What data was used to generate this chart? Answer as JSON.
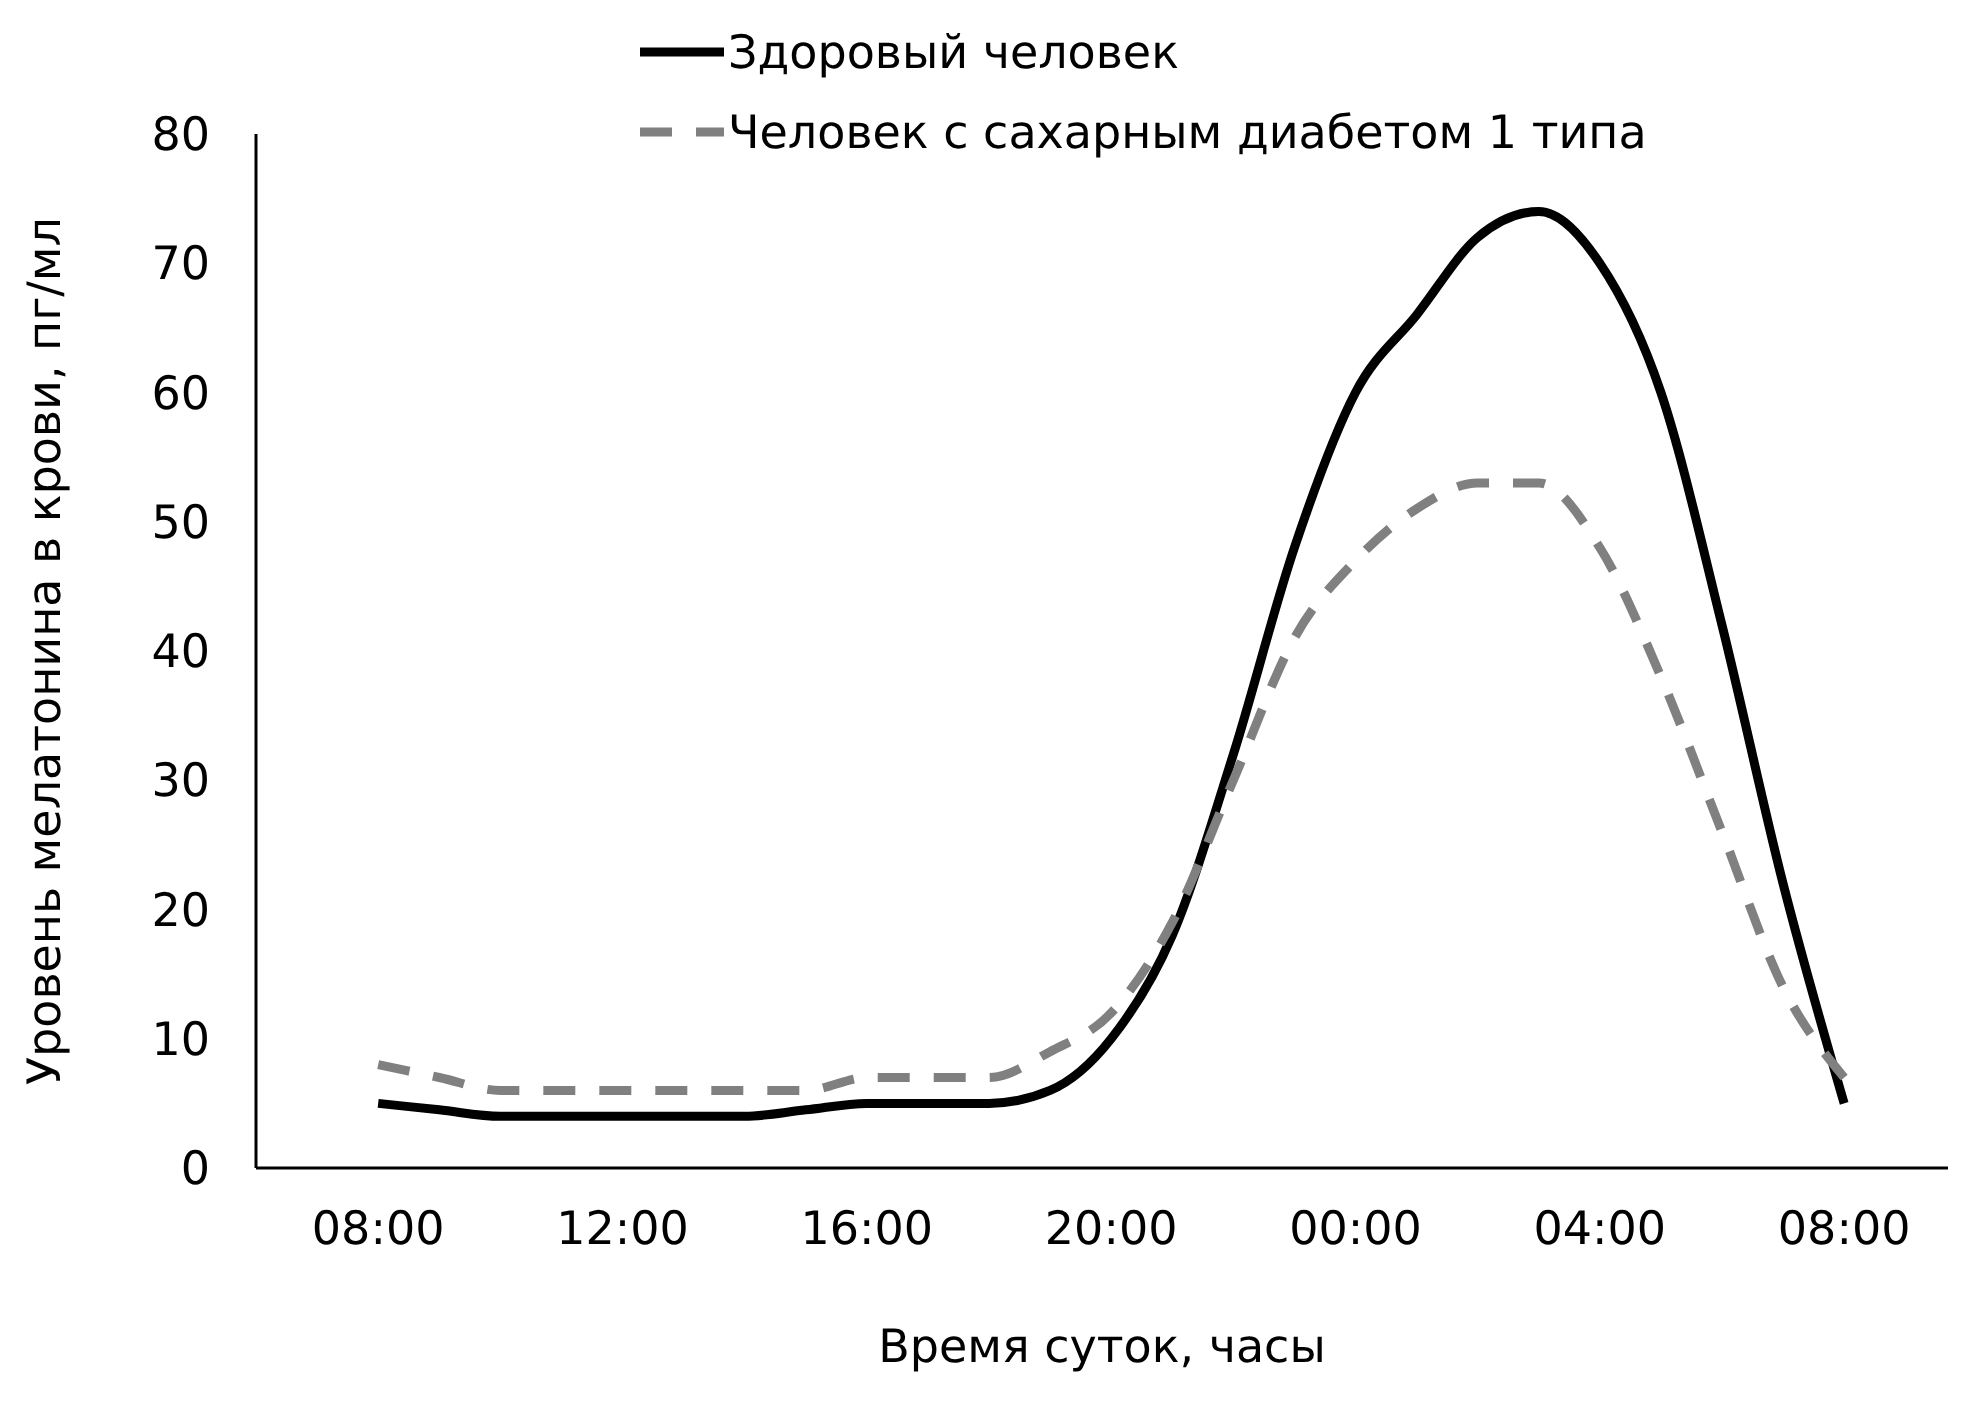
{
  "chart_data": {
    "type": "line",
    "xlabel": "Время суток, часы",
    "ylabel": "Уровень мелатонина в крови, пг/мл",
    "categories": [
      "08:00",
      null,
      null,
      null,
      "12:00",
      null,
      null,
      null,
      "16:00",
      null,
      null,
      null,
      "20:00",
      null,
      null,
      null,
      "00:00",
      null,
      null,
      null,
      "04:00",
      null,
      null,
      null,
      "08:00"
    ],
    "ylim": [
      0,
      80
    ],
    "yticks": [
      0,
      10,
      20,
      30,
      40,
      50,
      60,
      70,
      80
    ],
    "grid": false,
    "legend": "top",
    "marker": "none",
    "series": [
      {
        "name": "Здоровый человек",
        "color": "#000000",
        "line_style": "solid",
        "values": [
          5,
          4.5,
          4,
          4,
          4,
          4,
          4,
          4.5,
          5,
          5,
          5,
          6,
          10,
          18,
          32,
          48,
          60,
          66,
          72,
          74,
          70,
          60,
          42,
          22,
          5
        ]
      },
      {
        "name": "Человек с сахарным диабетом 1 типа",
        "color": "#808080",
        "line_style": "dashed",
        "values": [
          8,
          7,
          6,
          6,
          6,
          6,
          6,
          6,
          7,
          7,
          7,
          9,
          12,
          19,
          30,
          41,
          47,
          51,
          53,
          53,
          48,
          38,
          26,
          14,
          7
        ]
      }
    ]
  }
}
